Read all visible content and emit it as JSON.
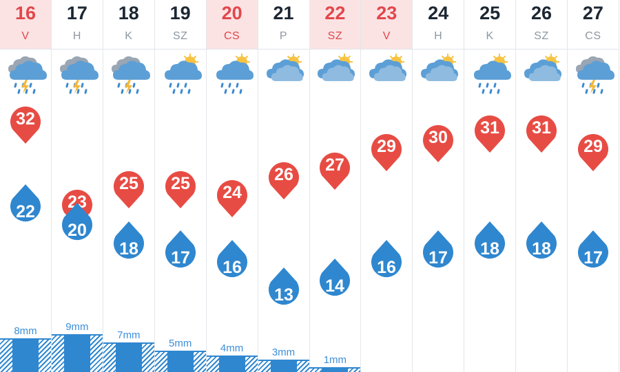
{
  "colors": {
    "accent_red": "#e74c44",
    "accent_blue": "#2f87cf",
    "weekend_bg": "#fbe3e4"
  },
  "days": [
    {
      "num": "16",
      "dow": "V",
      "weekend": true,
      "icon": "thunder-rain",
      "max": "32",
      "min": "22",
      "rain": "8mm",
      "rain_mm": 8
    },
    {
      "num": "17",
      "dow": "H",
      "weekend": false,
      "icon": "thunder-rain",
      "max": "23",
      "min": "20",
      "rain": "9mm",
      "rain_mm": 9
    },
    {
      "num": "18",
      "dow": "K",
      "weekend": false,
      "icon": "thunder-rain",
      "max": "25",
      "min": "18",
      "rain": "7mm",
      "rain_mm": 7
    },
    {
      "num": "19",
      "dow": "SZ",
      "weekend": false,
      "icon": "sun-rain",
      "max": "25",
      "min": "17",
      "rain": "5mm",
      "rain_mm": 5
    },
    {
      "num": "20",
      "dow": "CS",
      "weekend": true,
      "icon": "sun-rain",
      "max": "24",
      "min": "16",
      "rain": "4mm",
      "rain_mm": 4
    },
    {
      "num": "21",
      "dow": "P",
      "weekend": false,
      "icon": "partly-sunny",
      "max": "26",
      "min": "13",
      "rain": "3mm",
      "rain_mm": 3
    },
    {
      "num": "22",
      "dow": "SZ",
      "weekend": true,
      "icon": "partly-sunny",
      "max": "27",
      "min": "14",
      "rain": "1mm",
      "rain_mm": 1
    },
    {
      "num": "23",
      "dow": "V",
      "weekend": true,
      "icon": "partly-sunny",
      "max": "29",
      "min": "16",
      "rain": "",
      "rain_mm": 0
    },
    {
      "num": "24",
      "dow": "H",
      "weekend": false,
      "icon": "partly-sunny",
      "max": "30",
      "min": "17",
      "rain": "",
      "rain_mm": 0
    },
    {
      "num": "25",
      "dow": "K",
      "weekend": false,
      "icon": "sun-rain",
      "max": "31",
      "min": "18",
      "rain": "",
      "rain_mm": 0
    },
    {
      "num": "26",
      "dow": "SZ",
      "weekend": false,
      "icon": "partly-sunny",
      "max": "31",
      "min": "18",
      "rain": "",
      "rain_mm": 0
    },
    {
      "num": "27",
      "dow": "CS",
      "weekend": false,
      "icon": "thunder-rain",
      "max": "29",
      "min": "17",
      "rain": "",
      "rain_mm": 0
    }
  ]
}
